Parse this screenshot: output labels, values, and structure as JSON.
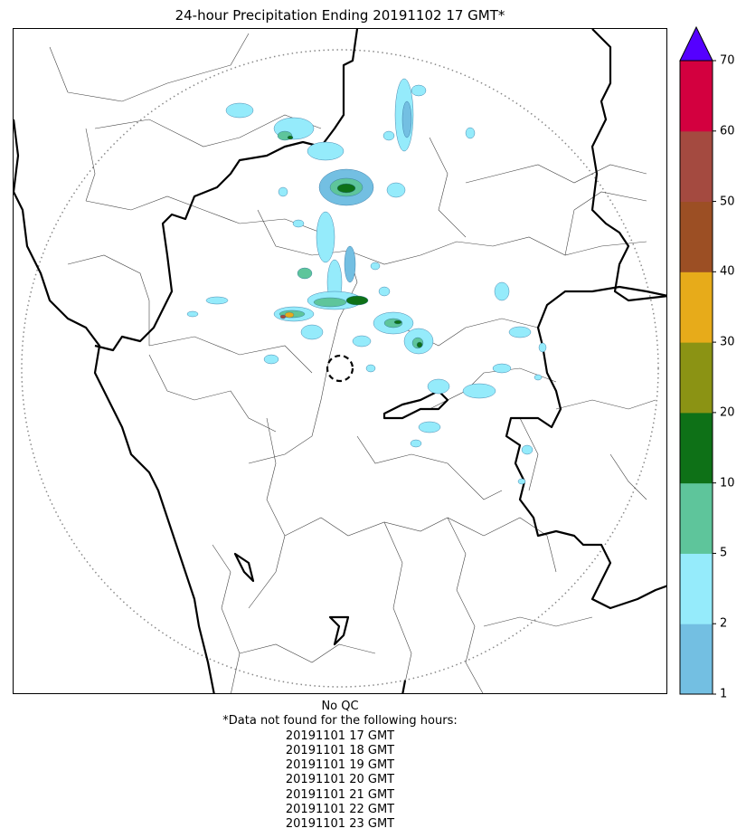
{
  "title": "24-hour Precipitation Ending 20191102 17 GMT*",
  "colorbar": {
    "ticks": [
      "1",
      "2",
      "5",
      "10",
      "20",
      "30",
      "40",
      "50",
      "60",
      "70"
    ],
    "colors": [
      "#73bfe2",
      "#95ebfb",
      "#5ec59b",
      "#0e7117",
      "#8b9314",
      "#e7ab1a",
      "#9c4f24",
      "#a44a40",
      "#d3003f"
    ],
    "extend_color": "#5500ff"
  },
  "map": {
    "radar_site_icon": "dashed-circle-icon",
    "coverage_ring": "dotted-range-ring"
  },
  "footer": {
    "qc": "No QC",
    "note": "*Data not found for the following hours:",
    "hours": [
      "20191101 17 GMT",
      "20191101 18 GMT",
      "20191101 19 GMT",
      "20191101 20 GMT",
      "20191101 21 GMT",
      "20191101 22 GMT",
      "20191101 23 GMT"
    ]
  }
}
